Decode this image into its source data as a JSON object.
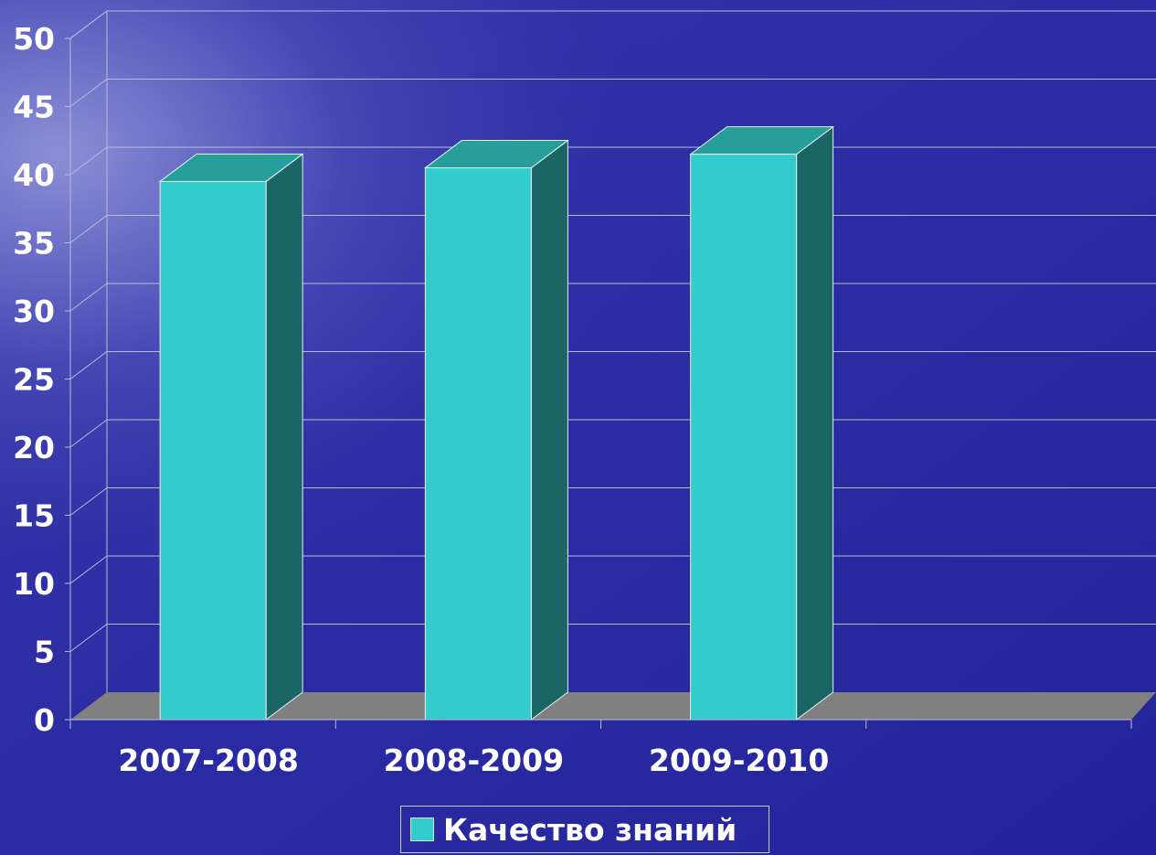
{
  "chart_data": {
    "type": "bar",
    "categories": [
      "2007-2008",
      "2008-2009",
      "2009-2010"
    ],
    "series": [
      {
        "name": "Качество знаний",
        "values": [
          39.5,
          40.5,
          41.5
        ]
      }
    ],
    "yticks": [
      "0",
      "5",
      "10",
      "15",
      "20",
      "25",
      "30",
      "35",
      "40",
      "45",
      "50"
    ],
    "ylim": [
      0,
      50
    ],
    "grid": true,
    "legend_position": "bottom",
    "colors": {
      "bar_front": "#33cccc",
      "bar_top": "#269e9a",
      "bar_side": "#1a6666",
      "floor": "#808080",
      "grid": "#b8bcd8",
      "text": "#ffffff"
    }
  }
}
